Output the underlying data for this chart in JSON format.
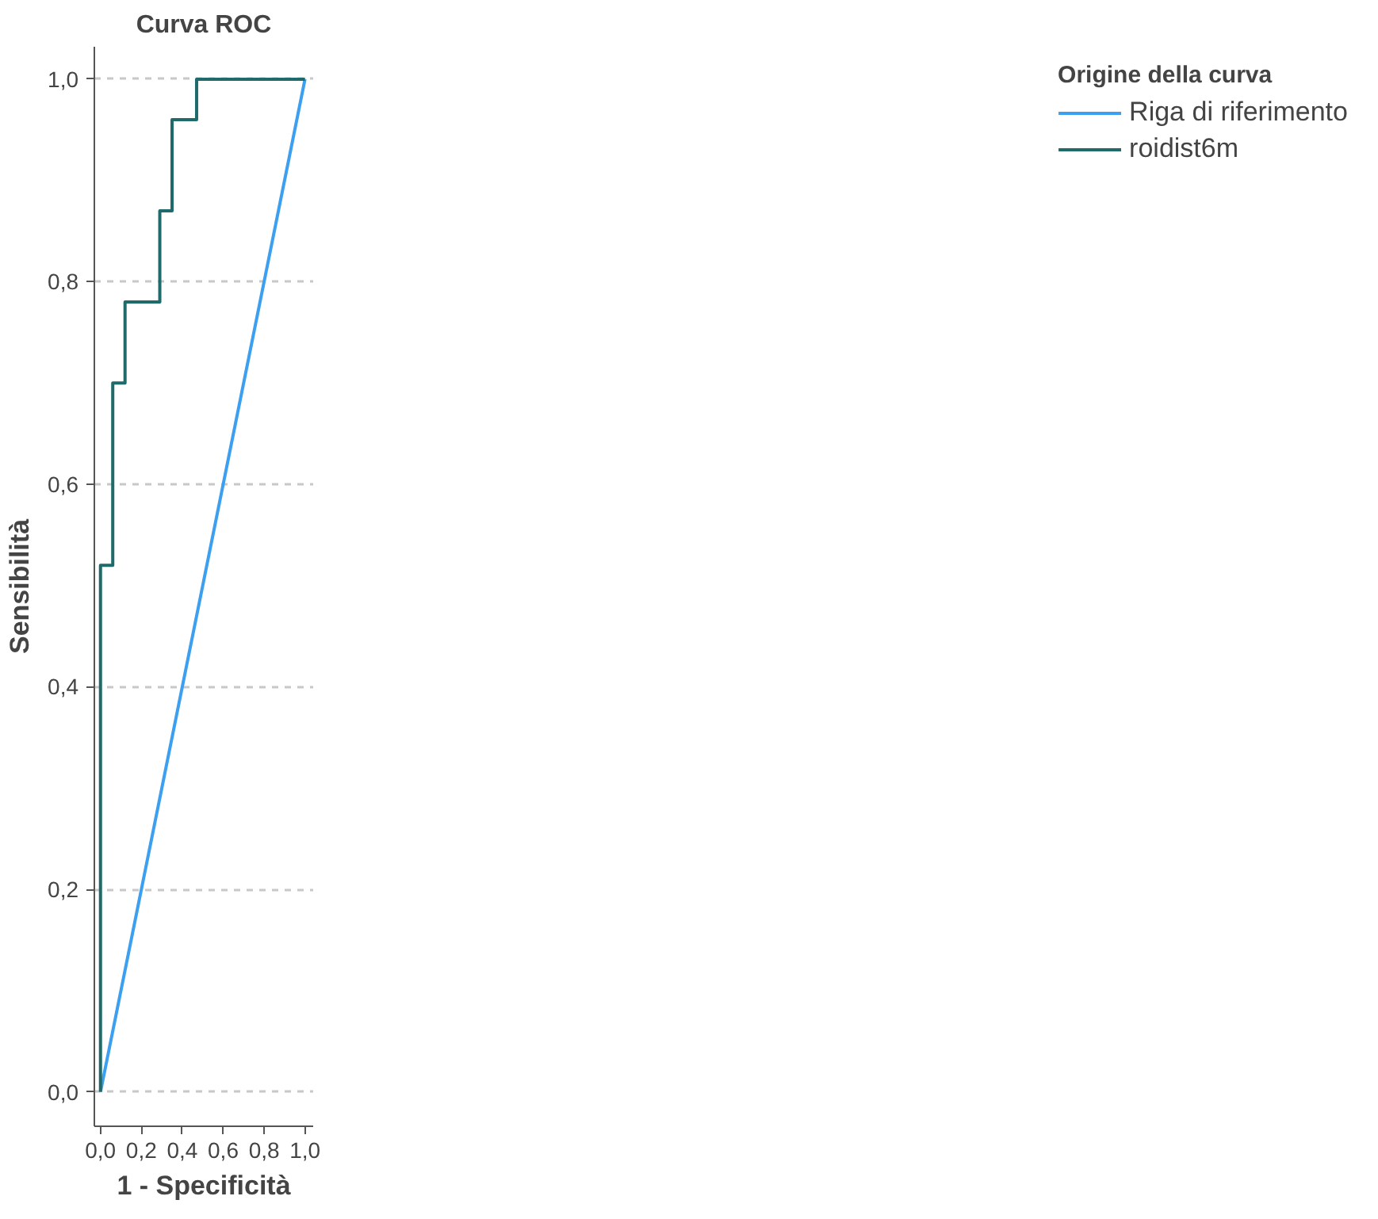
{
  "chart_data": {
    "type": "line",
    "title": "Curva ROC",
    "xlabel": "1 - Specificità",
    "ylabel": "Sensibilità",
    "legend_title": "Origine della curva",
    "xlim": [
      -0.03,
      1.04
    ],
    "ylim": [
      -0.034,
      1.032
    ],
    "xticks": [
      {
        "value": 0,
        "label": "0,0"
      },
      {
        "value": 0.2,
        "label": "0,2"
      },
      {
        "value": 0.4,
        "label": "0,4"
      },
      {
        "value": 0.6,
        "label": "0,6"
      },
      {
        "value": 0.8,
        "label": "0,8"
      },
      {
        "value": 1,
        "label": "1,0"
      }
    ],
    "yticks": [
      {
        "value": 0,
        "label": "0,0"
      },
      {
        "value": 0.2,
        "label": "0,2"
      },
      {
        "value": 0.4,
        "label": "0,4"
      },
      {
        "value": 0.6,
        "label": "0,6"
      },
      {
        "value": 0.8,
        "label": "0,8"
      },
      {
        "value": 1,
        "label": "1,0"
      }
    ],
    "grid": "y",
    "legend": "right",
    "marker": "none",
    "line_style": "solid",
    "series": [
      {
        "name": "Riga di riferimento",
        "color": "#3c9ff0",
        "x": [
          0,
          1
        ],
        "values": [
          0,
          1
        ]
      },
      {
        "name": "roidist6m",
        "color": "#1f6a6a",
        "x": [
          0,
          0,
          0.06,
          0.06,
          0.12,
          0.12,
          0.29,
          0.29,
          0.35,
          0.35,
          0.47,
          0.47,
          1
        ],
        "values": [
          0,
          0.52,
          0.52,
          0.7,
          0.7,
          0.78,
          0.78,
          0.87,
          0.87,
          0.96,
          0.96,
          1,
          1
        ]
      }
    ]
  }
}
